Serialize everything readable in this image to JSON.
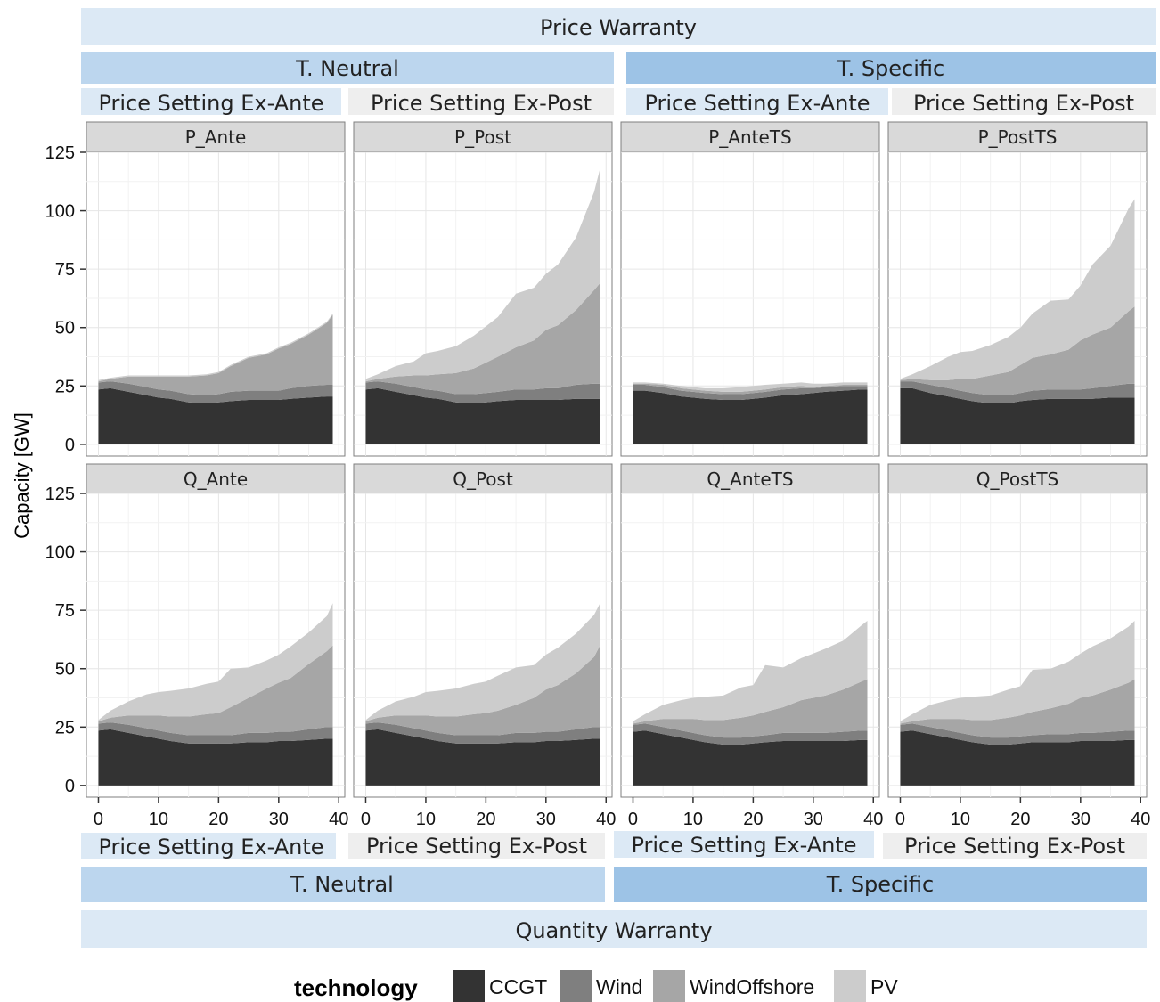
{
  "headers": {
    "top_title": "Price Warranty",
    "bottom_title": "Quantity Warranty",
    "top_groups": [
      "T. Neutral",
      "T. Specific"
    ],
    "bottom_groups": [
      "T. Neutral",
      "T. Specific"
    ],
    "top_subgroups": [
      "Price Setting Ex-Ante",
      "Price Setting Ex-Post",
      "Price Setting Ex-Ante",
      "Price Setting Ex-Post"
    ],
    "bottom_subgroups": [
      "Price Setting Ex-Ante",
      "Price Setting Ex-Post",
      "Price Setting Ex-Ante",
      "Price Setting Ex-Post"
    ],
    "colors": {
      "title_band": "#dce9f5",
      "neutral_band": "#bcd6ee",
      "specific_band": "#9dc3e6",
      "ante_band": "#dce9f5",
      "post_band": "#eeeeee"
    }
  },
  "chart_data": {
    "type": "area",
    "stacked": true,
    "ylabel": "Capacity [GW]",
    "xlabel": "",
    "xlim": [
      -2,
      41
    ],
    "ylim": [
      -5,
      125
    ],
    "xticks": [
      0,
      10,
      20,
      30,
      40
    ],
    "yticks": [
      0,
      25,
      50,
      75,
      100,
      125
    ],
    "grid": true,
    "legend": {
      "title": "technology",
      "position": "bottom",
      "entries": [
        {
          "name": "CCGT",
          "color": "#333333"
        },
        {
          "name": "Wind",
          "color": "#7f7f7f"
        },
        {
          "name": "WindOffshore",
          "color": "#a6a6a6"
        },
        {
          "name": "PV",
          "color": "#cccccc"
        }
      ]
    },
    "panels": [
      {
        "title": "P_Ante",
        "row": 0,
        "col": 0,
        "x": [
          0,
          2,
          5,
          8,
          10,
          12,
          15,
          18,
          20,
          22,
          25,
          28,
          30,
          32,
          35,
          38,
          39
        ],
        "CCGT": [
          23.5,
          24,
          22.5,
          21,
          20,
          19.5,
          18,
          17.5,
          18,
          18.5,
          19,
          19,
          19,
          19.5,
          20,
          20.5,
          20.5
        ],
        "Wind": [
          3,
          3,
          3.5,
          3.5,
          3.5,
          3.5,
          3.5,
          3.5,
          3.5,
          4,
          4,
          4,
          4,
          4.5,
          5,
          5,
          5
        ],
        "WindOffshore": [
          0.5,
          1,
          3,
          4.5,
          5.5,
          6,
          7.5,
          8.5,
          9,
          11,
          14,
          15.5,
          18,
          19,
          22,
          26.5,
          30
        ],
        "PV": [
          0.5,
          0.5,
          0.5,
          0.5,
          0.5,
          0.5,
          0.5,
          0.5,
          0.5,
          0.5,
          0.5,
          0.5,
          0.5,
          0.5,
          0.5,
          0.5,
          0.5
        ]
      },
      {
        "title": "P_Post",
        "row": 0,
        "col": 1,
        "x": [
          0,
          2,
          5,
          8,
          10,
          12,
          15,
          18,
          20,
          22,
          25,
          28,
          30,
          32,
          35,
          38,
          39
        ],
        "CCGT": [
          23.5,
          24,
          22.5,
          21,
          20,
          19.5,
          18,
          17.5,
          18,
          18.5,
          19,
          19,
          19,
          19,
          19.5,
          19.5,
          19.5
        ],
        "Wind": [
          3,
          3,
          3.5,
          3.5,
          3.5,
          3.5,
          3.5,
          4,
          4,
          4,
          4.5,
          4.5,
          5,
          5,
          6,
          6.5,
          6.5
        ],
        "WindOffshore": [
          0.5,
          1,
          3,
          5,
          6,
          7,
          9,
          11,
          13,
          15,
          18,
          21,
          25,
          27,
          32,
          40,
          43
        ],
        "PV": [
          1,
          2,
          4.5,
          6,
          9.5,
          10,
          11.5,
          14,
          15.5,
          17,
          23,
          22.5,
          24,
          26,
          31,
          42,
          49
        ]
      },
      {
        "title": "P_AnteTS",
        "row": 0,
        "col": 2,
        "x": [
          0,
          2,
          5,
          8,
          10,
          12,
          15,
          18,
          20,
          22,
          25,
          28,
          30,
          32,
          35,
          38,
          39
        ],
        "CCGT": [
          23,
          23,
          22,
          20.5,
          20,
          19.5,
          19,
          19,
          19.5,
          20,
          21,
          21.5,
          22,
          22.5,
          23,
          23.5,
          23.5
        ],
        "Wind": [
          2.5,
          2.5,
          2.5,
          2.5,
          2.5,
          2.5,
          2.5,
          2.5,
          2.5,
          2.5,
          2.5,
          2.5,
          2,
          2,
          2,
          1.5,
          1.5
        ],
        "WindOffshore": [
          0.5,
          0.5,
          1,
          1,
          1,
          1,
          1,
          1,
          1,
          1,
          1,
          1,
          0.5,
          0.5,
          0.5,
          0.5,
          0.5
        ],
        "PV": [
          0.5,
          0.5,
          0.5,
          1,
          1,
          1,
          1.5,
          2,
          2,
          2,
          1.5,
          1.5,
          1.5,
          1,
          1,
          1,
          1
        ]
      },
      {
        "title": "P_PostTS",
        "row": 0,
        "col": 3,
        "x": [
          0,
          2,
          5,
          8,
          10,
          12,
          15,
          18,
          20,
          22,
          25,
          28,
          30,
          32,
          35,
          38,
          39
        ],
        "CCGT": [
          24,
          24,
          22,
          20.5,
          19.5,
          18.5,
          17.5,
          17.5,
          18.5,
          19,
          19.5,
          19.5,
          19.5,
          19.5,
          20,
          20,
          20
        ],
        "Wind": [
          3,
          3,
          3.5,
          3.5,
          3.5,
          3.5,
          3.5,
          3.5,
          3.5,
          4,
          4,
          4,
          4,
          4.5,
          5,
          6,
          6
        ],
        "WindOffshore": [
          0.5,
          1,
          2,
          3.5,
          5,
          6,
          8.5,
          10,
          12,
          14,
          15,
          17,
          21,
          23,
          25,
          31,
          33
        ],
        "PV": [
          0.5,
          2,
          6,
          10,
          11.5,
          12,
          13,
          15,
          16,
          19,
          23,
          21.5,
          23.5,
          30,
          35,
          44,
          46
        ]
      },
      {
        "title": "Q_Ante",
        "row": 1,
        "col": 0,
        "x": [
          0,
          2,
          5,
          8,
          10,
          12,
          15,
          18,
          20,
          22,
          25,
          28,
          30,
          32,
          35,
          38,
          39
        ],
        "CCGT": [
          23.5,
          24,
          22.5,
          21,
          20,
          19,
          18,
          18,
          18,
          18,
          18.5,
          18.5,
          19,
          19,
          19.5,
          20,
          20
        ],
        "Wind": [
          3,
          3,
          3.5,
          3.5,
          3.5,
          3.5,
          3.5,
          3.5,
          3.5,
          3.5,
          4,
          4,
          4,
          4,
          4.5,
          5,
          5
        ],
        "WindOffshore": [
          1,
          2,
          4,
          5.5,
          6.5,
          7,
          8,
          9,
          9.5,
          12,
          15,
          19,
          21,
          23,
          28,
          32.5,
          35
        ],
        "PV": [
          0.5,
          3,
          6,
          9,
          10,
          11,
          12,
          13,
          13.5,
          16.5,
          13,
          12,
          12,
          13.5,
          13.5,
          15,
          18
        ]
      },
      {
        "title": "Q_Post",
        "row": 1,
        "col": 1,
        "x": [
          0,
          2,
          5,
          8,
          10,
          12,
          15,
          18,
          20,
          22,
          25,
          28,
          30,
          32,
          35,
          38,
          39
        ],
        "CCGT": [
          23.5,
          24,
          22.5,
          21,
          20,
          19,
          18,
          18,
          18,
          18,
          18.5,
          18.5,
          19,
          19,
          19.5,
          20,
          20
        ],
        "Wind": [
          3,
          3,
          3.5,
          3.5,
          3.5,
          3.5,
          3.5,
          3.5,
          3.5,
          3.5,
          4,
          4,
          4,
          4,
          4.5,
          5,
          5
        ],
        "WindOffshore": [
          1,
          2,
          4,
          5.5,
          6.5,
          7,
          8,
          9,
          9.5,
          10.5,
          12,
          15,
          18,
          20,
          24,
          30,
          35
        ],
        "PV": [
          0.5,
          3,
          6,
          8,
          10,
          11,
          12,
          13,
          13.5,
          15,
          16,
          14,
          15,
          16,
          17,
          18,
          18
        ]
      },
      {
        "title": "Q_AnteTS",
        "row": 1,
        "col": 2,
        "x": [
          0,
          2,
          5,
          8,
          10,
          12,
          15,
          18,
          20,
          22,
          25,
          28,
          30,
          32,
          35,
          38,
          39
        ],
        "CCGT": [
          23,
          23.5,
          22,
          20.5,
          19.5,
          18.5,
          17.5,
          17.5,
          18,
          18.5,
          19,
          19,
          19,
          19,
          19,
          19.5,
          19.5
        ],
        "Wind": [
          3,
          3,
          3,
          3,
          3,
          3,
          3,
          3,
          3,
          3,
          3.5,
          3.5,
          3.5,
          3.5,
          4,
          4,
          4
        ],
        "WindOffshore": [
          0.5,
          1,
          3.5,
          5,
          6,
          6.5,
          7.5,
          8.5,
          9,
          10,
          11,
          14,
          15,
          16,
          18,
          21,
          22
        ],
        "PV": [
          1,
          3,
          6,
          8,
          9,
          10,
          10.5,
          13,
          13,
          20,
          17,
          18,
          19,
          20,
          21,
          24,
          25
        ]
      },
      {
        "title": "Q_PostTS",
        "row": 1,
        "col": 3,
        "x": [
          0,
          2,
          5,
          8,
          10,
          12,
          15,
          18,
          20,
          22,
          25,
          28,
          30,
          32,
          35,
          38,
          39
        ],
        "CCGT": [
          23,
          23.5,
          22,
          20.5,
          19.5,
          18.5,
          17.5,
          17.5,
          18,
          18.5,
          18.5,
          18.5,
          19,
          19,
          19,
          19.5,
          19.5
        ],
        "Wind": [
          3,
          3,
          3,
          3,
          3,
          3,
          3,
          3,
          3,
          3,
          3.5,
          3.5,
          3.5,
          3.5,
          4,
          4,
          4
        ],
        "WindOffshore": [
          0.5,
          1,
          3.5,
          5,
          6,
          6.5,
          7.5,
          8.5,
          9,
          10,
          11,
          13,
          15,
          16,
          18,
          20.5,
          22
        ],
        "PV": [
          1,
          3,
          6,
          8,
          9,
          10,
          10.5,
          12,
          12.5,
          18,
          17,
          18,
          19,
          21,
          22,
          24,
          25
        ]
      }
    ]
  }
}
